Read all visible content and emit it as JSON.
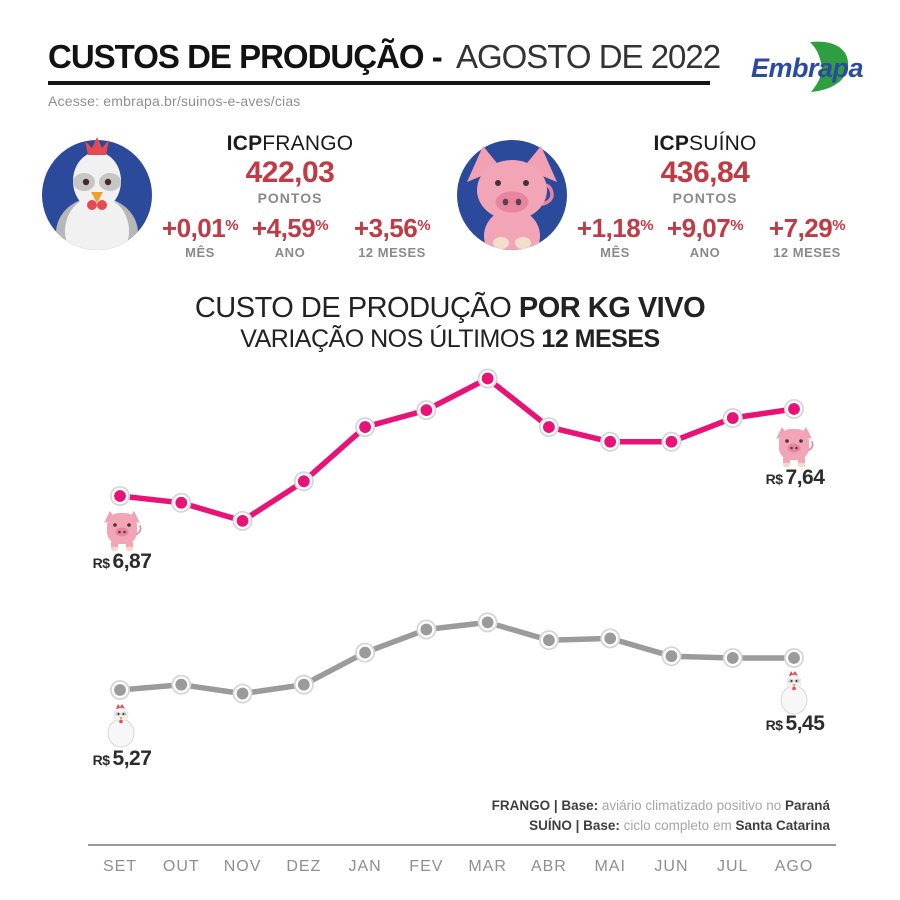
{
  "header": {
    "title_bold": "CUSTOS DE PRODUÇÃO -",
    "title_light": "AGOSTO DE 2022",
    "subtitle": "Acesse: embrapa.br/suinos-e-aves/cias",
    "logo_text": "Embrapa"
  },
  "indicators": {
    "frango": {
      "icon": "chicken-icon",
      "name_bold": "ICP",
      "name_light": "FRANGO",
      "points_value": "422,03",
      "points_label": "PONTOS",
      "stats": [
        {
          "value": "+0,01",
          "unit": "%",
          "label": "MÊS"
        },
        {
          "value": "+4,59",
          "unit": "%",
          "label": "ANO"
        },
        {
          "value": "+3,56",
          "unit": "%",
          "label": "12 MESES"
        }
      ]
    },
    "suino": {
      "icon": "pig-icon",
      "name_bold": "ICP",
      "name_light": "SUÍNO",
      "points_value": "436,84",
      "points_label": "PONTOS",
      "stats": [
        {
          "value": "+1,18",
          "unit": "%",
          "label": "MÊS"
        },
        {
          "value": "+9,07",
          "unit": "%",
          "label": "ANO"
        },
        {
          "value": "+7,29",
          "unit": "%",
          "label": "12 MESES"
        }
      ]
    }
  },
  "chart_data": {
    "type": "line",
    "title": {
      "regular": "CUSTO DE PRODUÇÃO ",
      "bold": "POR KG VIVO"
    },
    "subtitle": {
      "regular": "VARIAÇÃO NOS ÚLTIMOS ",
      "bold": "12 MESES"
    },
    "categories": [
      "SET",
      "OUT",
      "NOV",
      "DEZ",
      "JAN",
      "FEV",
      "MAR",
      "ABR",
      "MAI",
      "JUN",
      "JUL",
      "AGO"
    ],
    "series": [
      {
        "name": "SUÍNO",
        "color": "#e81377",
        "values": [
          6.87,
          6.81,
          6.65,
          7.0,
          7.48,
          7.63,
          7.91,
          7.48,
          7.35,
          7.35,
          7.56,
          7.64
        ],
        "start_label": {
          "currency": "R$",
          "value": "6,87"
        },
        "end_label": {
          "currency": "R$",
          "value": "7,64"
        },
        "icon": "pig-icon"
      },
      {
        "name": "FRANGO",
        "color": "#9b9b9b",
        "values": [
          5.27,
          5.3,
          5.25,
          5.3,
          5.48,
          5.61,
          5.65,
          5.55,
          5.56,
          5.46,
          5.45,
          5.45
        ],
        "start_label": {
          "currency": "R$",
          "value": "5,27"
        },
        "end_label": {
          "currency": "R$",
          "value": "5,45"
        },
        "icon": "chicken-icon"
      }
    ],
    "grid": false,
    "legend": false,
    "xlabel": "",
    "ylabel": ""
  },
  "footnotes": [
    {
      "bold1": "FRANGO | Base:",
      "light": " aviário climatizado positivo no ",
      "bold2": "Paraná"
    },
    {
      "bold1": "SUÍNO | Base:",
      "light": " ciclo completo em ",
      "bold2": "Santa Catarina"
    }
  ]
}
